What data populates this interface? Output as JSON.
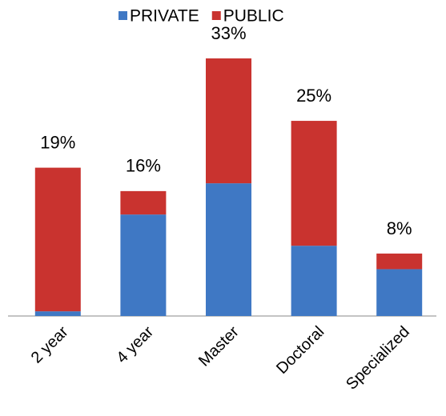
{
  "chart_data": {
    "type": "stacked_bar",
    "categories": [
      "2 year",
      "4 year",
      "Master",
      "Doctoral",
      "Specialized"
    ],
    "series": [
      {
        "name": "PRIVATE",
        "color": "#3f78c4",
        "values": [
          0.6,
          13,
          17,
          9,
          6
        ]
      },
      {
        "name": "PUBLIC",
        "color": "#c9332f",
        "values": [
          18.4,
          3,
          16,
          16,
          2
        ]
      }
    ],
    "totals": {
      "values": [
        19,
        16,
        33,
        25,
        8
      ],
      "value_labels": [
        "19%",
        "16%",
        "33%",
        "25%",
        "8%"
      ]
    },
    "legend": "top"
  }
}
